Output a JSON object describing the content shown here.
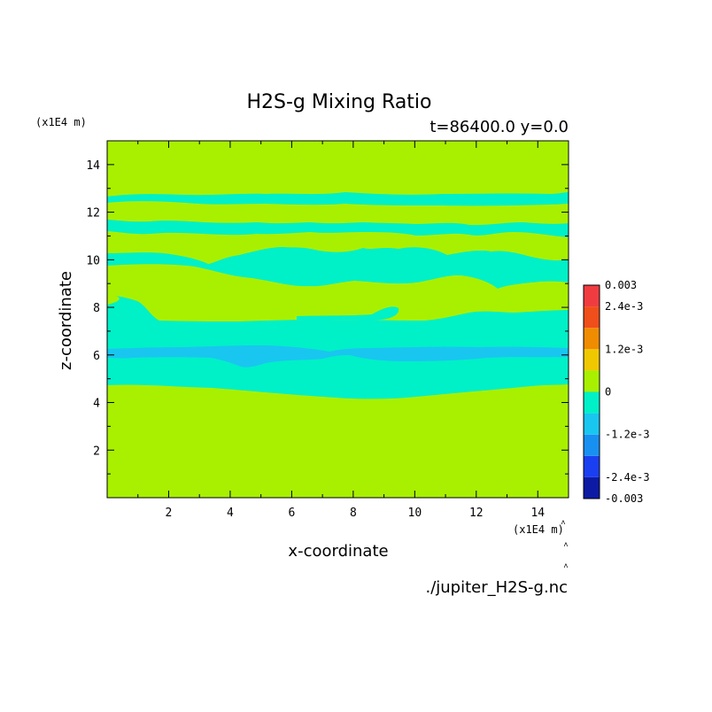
{
  "chart_data": {
    "type": "heatmap",
    "title": "H2S-g Mixing Ratio",
    "subtitle": "t=86400.0 y=0.0",
    "xlabel": "x-coordinate",
    "ylabel": "z-coordinate",
    "x_unit": "(x1E4 m)",
    "y_unit": "(x1E4 m)",
    "xlim": [
      0,
      15
    ],
    "ylim": [
      0,
      15
    ],
    "x_ticks": [
      2,
      4,
      6,
      8,
      10,
      12,
      14
    ],
    "y_ticks": [
      2,
      4,
      6,
      8,
      10,
      12,
      14
    ],
    "x_tick_labels": [
      "2",
      "4",
      "6",
      "8",
      "10",
      "12",
      "14"
    ],
    "y_tick_labels": [
      "2",
      "4",
      "6",
      "8",
      "10",
      "12",
      "14"
    ],
    "source_label": "./jupiter_H2S-g.nc",
    "colorbar": {
      "min": -0.003,
      "max": 0.003,
      "levels": [
        -0.003,
        -0.0024,
        -0.0018,
        -0.0012,
        -0.0006,
        0,
        0.0006,
        0.0012,
        0.0018,
        0.0024,
        0.003
      ],
      "colors": [
        "#0d1aa3",
        "#1a3ff0",
        "#1890f2",
        "#19c6f0",
        "#00f0c8",
        "#a8f000",
        "#f0c800",
        "#f08c00",
        "#f04e1a",
        "#f03c40"
      ],
      "tick_values": [
        0.003,
        0.0024,
        0.0012,
        0,
        -0.0012,
        -0.0024,
        -0.003
      ],
      "tick_labels": [
        "0.003",
        "2.4e-3",
        "1.2e-3",
        "0",
        "-1.2e-3",
        "-2.4e-3",
        "-0.003"
      ]
    },
    "regions": [
      {
        "level": "0 to 6e-4",
        "color": "#a8f000",
        "z_range": [
          0,
          15
        ]
      },
      {
        "level": "-6e-4 to 0",
        "color": "#00f0c8",
        "z_range": [
          4.5,
          12.6
        ]
      },
      {
        "level": "-1.2e-3 to -6e-4",
        "color": "#19c6f0",
        "z_range": [
          5.5,
          6.4
        ]
      }
    ]
  }
}
